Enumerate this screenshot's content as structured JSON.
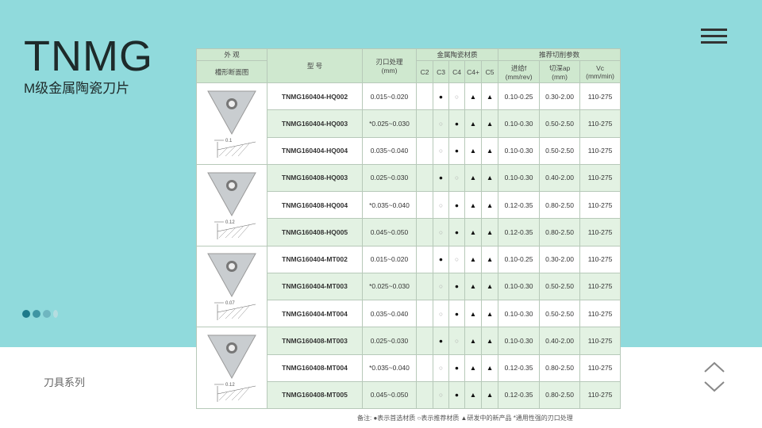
{
  "title": "TNMG",
  "subtitle": "M级金属陶瓷刀片",
  "footer": "刀具系列",
  "colors": {
    "background": "#90dadc",
    "header_green": "#cfe8cf",
    "row_green": "#e3f2e3"
  },
  "pagination": {
    "dots": 4,
    "active": 0
  },
  "table": {
    "headers": {
      "appearance": "外 观",
      "section": "槽形断面图",
      "model": "型 号",
      "edge": "刃口处理",
      "edge_unit": "(mm)",
      "grades": "金属陶瓷材质",
      "params": "推荐切削参数",
      "grade_cols": [
        "C2",
        "C3",
        "C4",
        "C4+",
        "C5"
      ],
      "feed": "进给f",
      "feed_unit": "(mm/rev)",
      "depth": "切深ap",
      "depth_unit": "(mm)",
      "vc": "Vc",
      "vc_unit": "(mm/min)"
    },
    "groups": [
      {
        "dim": "0.1"
      },
      {
        "dim": "0.12"
      },
      {
        "dim": "0.07"
      },
      {
        "dim": "0.12"
      }
    ],
    "rows": [
      {
        "model": "TNMG160404-HQ002",
        "edge": "0.015~0.020",
        "grades": [
          "",
          "●",
          "○",
          "▲",
          "▲"
        ],
        "feed": "0.10-0.25",
        "depth": "0.30-2.00",
        "vc": "110-275"
      },
      {
        "model": "TNMG160404-HQ003",
        "edge": "*0.025~0.030",
        "grades": [
          "",
          "○",
          "●",
          "▲",
          "▲"
        ],
        "feed": "0.10-0.30",
        "depth": "0.50-2.50",
        "vc": "110-275"
      },
      {
        "model": "TNMG160404-HQ004",
        "edge": "0.035~0.040",
        "grades": [
          "",
          "○",
          "●",
          "▲",
          "▲"
        ],
        "feed": "0.10-0.30",
        "depth": "0.50-2.50",
        "vc": "110-275"
      },
      {
        "model": "TNMG160408-HQ003",
        "edge": "0.025~0.030",
        "grades": [
          "",
          "●",
          "○",
          "▲",
          "▲"
        ],
        "feed": "0.10-0.30",
        "depth": "0.40-2.00",
        "vc": "110-275"
      },
      {
        "model": "TNMG160408-HQ004",
        "edge": "*0.035~0.040",
        "grades": [
          "",
          "○",
          "●",
          "▲",
          "▲"
        ],
        "feed": "0.12-0.35",
        "depth": "0.80-2.50",
        "vc": "110-275"
      },
      {
        "model": "TNMG160408-HQ005",
        "edge": "0.045~0.050",
        "grades": [
          "",
          "○",
          "●",
          "▲",
          "▲"
        ],
        "feed": "0.12-0.35",
        "depth": "0.80-2.50",
        "vc": "110-275"
      },
      {
        "model": "TNMG160404-MT002",
        "edge": "0.015~0.020",
        "grades": [
          "",
          "●",
          "○",
          "▲",
          "▲"
        ],
        "feed": "0.10-0.25",
        "depth": "0.30-2.00",
        "vc": "110-275"
      },
      {
        "model": "TNMG160404-MT003",
        "edge": "*0.025~0.030",
        "grades": [
          "",
          "○",
          "●",
          "▲",
          "▲"
        ],
        "feed": "0.10-0.30",
        "depth": "0.50-2.50",
        "vc": "110-275"
      },
      {
        "model": "TNMG160404-MT004",
        "edge": "0.035~0.040",
        "grades": [
          "",
          "○",
          "●",
          "▲",
          "▲"
        ],
        "feed": "0.10-0.30",
        "depth": "0.50-2.50",
        "vc": "110-275"
      },
      {
        "model": "TNMG160408-MT003",
        "edge": "0.025~0.030",
        "grades": [
          "",
          "●",
          "○",
          "▲",
          "▲"
        ],
        "feed": "0.10-0.30",
        "depth": "0.40-2.00",
        "vc": "110-275"
      },
      {
        "model": "TNMG160408-MT004",
        "edge": "*0.035~0.040",
        "grades": [
          "",
          "○",
          "●",
          "▲",
          "▲"
        ],
        "feed": "0.12-0.35",
        "depth": "0.80-2.50",
        "vc": "110-275"
      },
      {
        "model": "TNMG160408-MT005",
        "edge": "0.045~0.050",
        "grades": [
          "",
          "○",
          "●",
          "▲",
          "▲"
        ],
        "feed": "0.12-0.35",
        "depth": "0.80-2.50",
        "vc": "110-275"
      }
    ],
    "note": "备注: ●表示首选材质   ○表示推荐材质   ▲研发中的新产品   *通用性强的刃口处理"
  }
}
